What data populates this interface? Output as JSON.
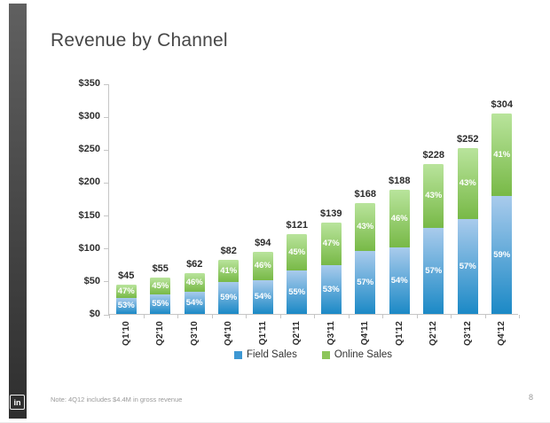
{
  "slide": {
    "title": "Revenue by Channel",
    "note": "Note: 4Q12 includes $4.4M in gross revenue",
    "page_number": "8",
    "logo_text": "in"
  },
  "chart_data": {
    "type": "bar",
    "stacked": true,
    "title": "Revenue by Channel",
    "categories": [
      "Q1'10",
      "Q2'10",
      "Q3'10",
      "Q4'10",
      "Q1'11",
      "Q2'11",
      "Q3'11",
      "Q4'11",
      "Q1'12",
      "Q2'12",
      "Q3'12",
      "Q4'12"
    ],
    "totals": [
      45,
      55,
      62,
      82,
      94,
      121,
      139,
      168,
      188,
      228,
      252,
      304
    ],
    "total_labels": [
      "$45",
      "$55",
      "$62",
      "$82",
      "$94",
      "$121",
      "$139",
      "$168",
      "$188",
      "$228",
      "$252",
      "$304"
    ],
    "series": [
      {
        "name": "Field Sales",
        "percent": [
          53,
          55,
          54,
          59,
          54,
          55,
          53,
          57,
          54,
          57,
          57,
          59
        ],
        "percent_labels": [
          "53%",
          "55%",
          "54%",
          "59%",
          "54%",
          "55%",
          "53%",
          "57%",
          "54%",
          "57%",
          "57%",
          "59%"
        ],
        "color_top": "#a9cbec",
        "color_bottom": "#1b89c6",
        "legend_color": "#3d97d3"
      },
      {
        "name": "Online Sales",
        "percent": [
          47,
          45,
          46,
          41,
          46,
          45,
          47,
          43,
          46,
          43,
          43,
          41
        ],
        "percent_labels": [
          "47%",
          "45%",
          "46%",
          "41%",
          "46%",
          "45%",
          "47%",
          "43%",
          "46%",
          "43%",
          "43%",
          "41%"
        ],
        "color_top": "#b9e49c",
        "color_bottom": "#78b947",
        "legend_color": "#8dc65a"
      }
    ],
    "y_axis": {
      "ticks": [
        "$0",
        "$50",
        "$100",
        "$150",
        "$200",
        "$250",
        "$300",
        "$350"
      ],
      "min": 0,
      "max": 350,
      "step": 50
    },
    "xlabel": "",
    "ylabel": "",
    "legend_position": "bottom",
    "gridlines": false
  }
}
